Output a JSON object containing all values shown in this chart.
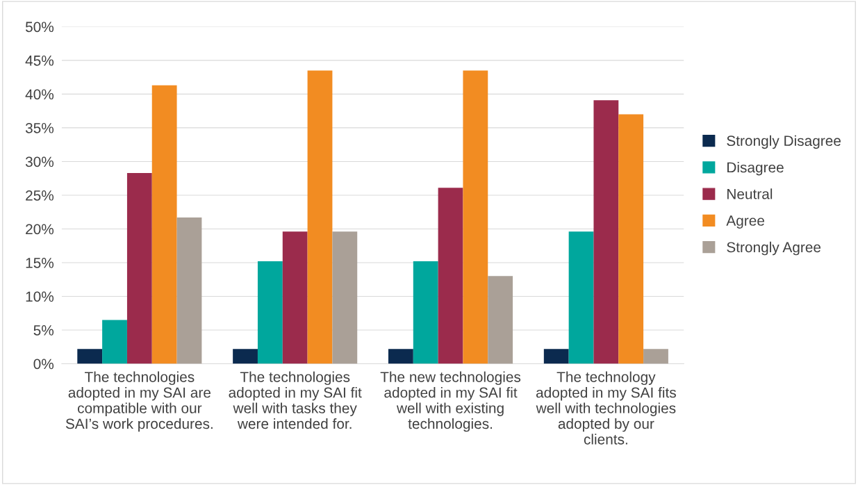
{
  "chart_data": {
    "type": "bar",
    "categories": [
      "The technologies\nadopted in my SAI are\ncompatible with our\nSAI’s work procedures.",
      "The technologies\nadopted in my SAI fit\nwell with tasks they\nwere intended for.",
      "The new technologies\nadopted in my SAI fit\nwell with existing\ntechnologies.",
      "The technology\nadopted in my SAI fits\nwell with technologies\nadopted by our\nclients."
    ],
    "series": [
      {
        "name": "Strongly Disagree",
        "color": "#0b2a4f",
        "values": [
          2.2,
          2.2,
          2.2,
          2.2
        ]
      },
      {
        "name": "Disagree",
        "color": "#00a79d",
        "values": [
          6.5,
          15.2,
          15.2,
          19.6
        ]
      },
      {
        "name": "Neutral",
        "color": "#9b2b4c",
        "values": [
          28.3,
          19.6,
          26.1,
          39.1
        ]
      },
      {
        "name": "Agree",
        "color": "#f28c22",
        "values": [
          41.3,
          43.5,
          43.5,
          37.0
        ]
      },
      {
        "name": "Strongly Agree",
        "color": "#aaa097",
        "values": [
          21.7,
          19.6,
          13.0,
          2.2
        ]
      }
    ],
    "ylim": [
      0,
      50
    ],
    "yticks": [
      {
        "value": 0,
        "label": "0%"
      },
      {
        "value": 5,
        "label": "5%"
      },
      {
        "value": 10,
        "label": "10%"
      },
      {
        "value": 15,
        "label": "15%"
      },
      {
        "value": 20,
        "label": "20%"
      },
      {
        "value": 25,
        "label": "25%"
      },
      {
        "value": 30,
        "label": "30%"
      },
      {
        "value": 35,
        "label": "35%"
      },
      {
        "value": 40,
        "label": "40%"
      },
      {
        "value": 45,
        "label": "45%"
      },
      {
        "value": 50,
        "label": "50%"
      }
    ],
    "grid": "y",
    "legend": "right"
  }
}
